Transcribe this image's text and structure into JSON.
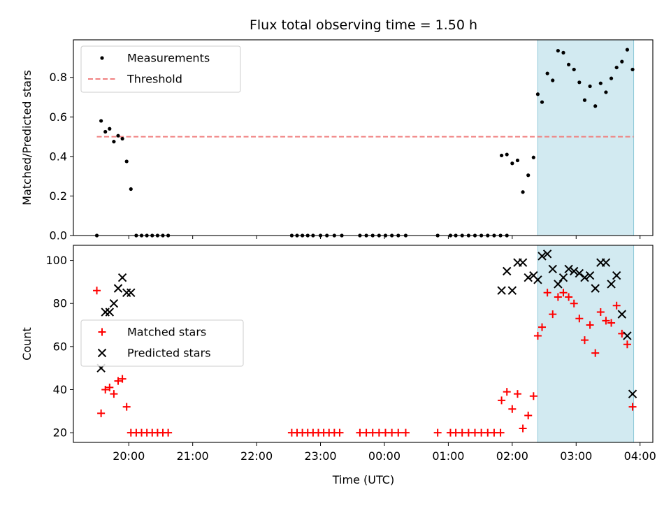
{
  "chart_data": {
    "type": "scatter",
    "title": "Flux total observing time = 1.50 h",
    "xlabel": "Time (UTC)",
    "x_ticks": [
      "20:00",
      "21:00",
      "22:00",
      "23:00",
      "00:00",
      "01:00",
      "02:00",
      "03:00",
      "04:00"
    ],
    "shaded_region": {
      "x_start": "02:24",
      "x_end": "03:54",
      "color": "#add8e6"
    },
    "panels": [
      {
        "type": "scatter",
        "ylabel": "Matched/Predicted stars",
        "ylim": [
          0,
          0.99
        ],
        "y_ticks": [
          "0.0",
          "0.2",
          "0.4",
          "0.6",
          "0.8"
        ],
        "legend_placement": "upper-left",
        "legend": [
          "Measurements",
          "Threshold"
        ],
        "threshold": {
          "name": "Threshold",
          "value": 0.5,
          "x_start": "19:30",
          "x_end": "03:54",
          "color": "#f08080"
        },
        "series": [
          {
            "name": "Measurements",
            "color": "#000000",
            "points": [
              [
                "19:30",
                0.0
              ],
              [
                "19:34",
                0.58
              ],
              [
                "19:38",
                0.525
              ],
              [
                "19:42",
                0.54
              ],
              [
                "19:46",
                0.475
              ],
              [
                "19:50",
                0.505
              ],
              [
                "19:54",
                0.49
              ],
              [
                "19:58",
                0.375
              ],
              [
                "20:02",
                0.235
              ],
              [
                "20:07",
                0.0
              ],
              [
                "20:12",
                0.0
              ],
              [
                "20:17",
                0.0
              ],
              [
                "20:22",
                0.0
              ],
              [
                "20:27",
                0.0
              ],
              [
                "20:32",
                0.0
              ],
              [
                "20:37",
                0.0
              ],
              [
                "22:33",
                0.0
              ],
              [
                "22:38",
                0.0
              ],
              [
                "22:43",
                0.0
              ],
              [
                "22:48",
                0.0
              ],
              [
                "22:53",
                0.0
              ],
              [
                "23:00",
                0.0
              ],
              [
                "23:06",
                0.0
              ],
              [
                "23:13",
                0.0
              ],
              [
                "23:20",
                0.0
              ],
              [
                "23:37",
                0.0
              ],
              [
                "23:43",
                0.0
              ],
              [
                "23:49",
                0.0
              ],
              [
                "23:55",
                0.0
              ],
              [
                "00:01",
                0.0
              ],
              [
                "00:07",
                0.0
              ],
              [
                "00:13",
                0.0
              ],
              [
                "00:20",
                0.0
              ],
              [
                "00:50",
                0.0
              ],
              [
                "01:02",
                0.0
              ],
              [
                "01:07",
                0.0
              ],
              [
                "01:13",
                0.0
              ],
              [
                "01:19",
                0.0
              ],
              [
                "01:25",
                0.0
              ],
              [
                "01:31",
                0.0
              ],
              [
                "01:37",
                0.0
              ],
              [
                "01:43",
                0.0
              ],
              [
                "01:49",
                0.0
              ],
              [
                "01:55",
                0.0
              ],
              [
                "01:50",
                0.405
              ],
              [
                "01:55",
                0.41
              ],
              [
                "02:00",
                0.365
              ],
              [
                "02:05",
                0.38
              ],
              [
                "02:10",
                0.22
              ],
              [
                "02:15",
                0.305
              ],
              [
                "02:20",
                0.395
              ],
              [
                "02:24",
                0.715
              ],
              [
                "02:28",
                0.675
              ],
              [
                "02:33",
                0.82
              ],
              [
                "02:38",
                0.785
              ],
              [
                "02:43",
                0.935
              ],
              [
                "02:48",
                0.925
              ],
              [
                "02:53",
                0.865
              ],
              [
                "02:58",
                0.84
              ],
              [
                "03:03",
                0.775
              ],
              [
                "03:08",
                0.685
              ],
              [
                "03:13",
                0.755
              ],
              [
                "03:18",
                0.655
              ],
              [
                "03:23",
                0.77
              ],
              [
                "03:28",
                0.725
              ],
              [
                "03:33",
                0.795
              ],
              [
                "03:38",
                0.85
              ],
              [
                "03:43",
                0.88
              ],
              [
                "03:48",
                0.94
              ],
              [
                "03:53",
                0.84
              ]
            ]
          }
        ]
      },
      {
        "type": "scatter",
        "ylabel": "Count",
        "ylim": [
          15.5,
          107
        ],
        "y_ticks": [
          "20",
          "40",
          "60",
          "80",
          "100"
        ],
        "legend_placement": "center-left",
        "legend": [
          "Matched stars",
          "Predicted stars"
        ],
        "series": [
          {
            "name": "Matched stars",
            "color": "#ff0000",
            "marker": "plus",
            "points": [
              [
                "19:30",
                86
              ],
              [
                "19:34",
                29
              ],
              [
                "19:38",
                40
              ],
              [
                "19:42",
                41
              ],
              [
                "19:46",
                38
              ],
              [
                "19:50",
                44
              ],
              [
                "19:54",
                45
              ],
              [
                "19:58",
                32
              ],
              [
                "20:02",
                20
              ],
              [
                "20:07",
                20
              ],
              [
                "20:12",
                20
              ],
              [
                "20:17",
                20
              ],
              [
                "20:22",
                20
              ],
              [
                "20:27",
                20
              ],
              [
                "20:32",
                20
              ],
              [
                "20:37",
                20
              ],
              [
                "22:33",
                20
              ],
              [
                "22:38",
                20
              ],
              [
                "22:43",
                20
              ],
              [
                "22:48",
                20
              ],
              [
                "22:53",
                20
              ],
              [
                "22:58",
                20
              ],
              [
                "23:03",
                20
              ],
              [
                "23:08",
                20
              ],
              [
                "23:13",
                20
              ],
              [
                "23:18",
                20
              ],
              [
                "23:37",
                20
              ],
              [
                "23:43",
                20
              ],
              [
                "23:49",
                20
              ],
              [
                "23:55",
                20
              ],
              [
                "00:01",
                20
              ],
              [
                "00:07",
                20
              ],
              [
                "00:13",
                20
              ],
              [
                "00:20",
                20
              ],
              [
                "00:50",
                20
              ],
              [
                "01:02",
                20
              ],
              [
                "01:07",
                20
              ],
              [
                "01:13",
                20
              ],
              [
                "01:19",
                20
              ],
              [
                "01:25",
                20
              ],
              [
                "01:31",
                20
              ],
              [
                "01:37",
                20
              ],
              [
                "01:43",
                20
              ],
              [
                "01:49",
                20
              ],
              [
                "01:50",
                35
              ],
              [
                "01:55",
                39
              ],
              [
                "02:00",
                31
              ],
              [
                "02:05",
                38
              ],
              [
                "02:10",
                22
              ],
              [
                "02:15",
                28
              ],
              [
                "02:20",
                37
              ],
              [
                "02:24",
                65
              ],
              [
                "02:28",
                69
              ],
              [
                "02:33",
                85
              ],
              [
                "02:38",
                75
              ],
              [
                "02:43",
                83
              ],
              [
                "02:48",
                85
              ],
              [
                "02:53",
                83
              ],
              [
                "02:58",
                80
              ],
              [
                "03:03",
                73
              ],
              [
                "03:08",
                63
              ],
              [
                "03:13",
                70
              ],
              [
                "03:18",
                57
              ],
              [
                "03:23",
                76
              ],
              [
                "03:28",
                72
              ],
              [
                "03:33",
                71
              ],
              [
                "03:38",
                79
              ],
              [
                "03:43",
                66
              ],
              [
                "03:48",
                61
              ],
              [
                "03:53",
                32
              ]
            ]
          },
          {
            "name": "Predicted stars",
            "color": "#000000",
            "marker": "x",
            "points": [
              [
                "19:34",
                50
              ],
              [
                "19:38",
                76
              ],
              [
                "19:42",
                76
              ],
              [
                "19:46",
                80
              ],
              [
                "19:50",
                87
              ],
              [
                "19:54",
                92
              ],
              [
                "19:58",
                85
              ],
              [
                "20:02",
                85
              ],
              [
                "01:50",
                86
              ],
              [
                "01:55",
                95
              ],
              [
                "02:00",
                86
              ],
              [
                "02:05",
                99
              ],
              [
                "02:10",
                99
              ],
              [
                "02:15",
                92
              ],
              [
                "02:20",
                93
              ],
              [
                "02:24",
                91
              ],
              [
                "02:28",
                102
              ],
              [
                "02:33",
                103
              ],
              [
                "02:38",
                96
              ],
              [
                "02:43",
                89
              ],
              [
                "02:48",
                92
              ],
              [
                "02:53",
                96
              ],
              [
                "02:58",
                95
              ],
              [
                "03:03",
                94
              ],
              [
                "03:08",
                92
              ],
              [
                "03:13",
                93
              ],
              [
                "03:18",
                87
              ],
              [
                "03:23",
                99
              ],
              [
                "03:28",
                99
              ],
              [
                "03:33",
                89
              ],
              [
                "03:38",
                93
              ],
              [
                "03:43",
                75
              ],
              [
                "03:48",
                65
              ],
              [
                "03:53",
                38
              ]
            ]
          }
        ]
      }
    ]
  }
}
